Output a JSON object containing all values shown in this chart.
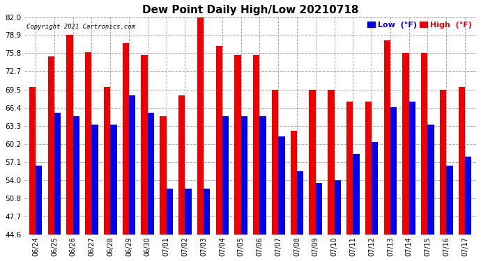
{
  "title": "Dew Point Daily High/Low 20210718",
  "copyright": "Copyright 2021 Cartronics.com",
  "legend_low": "Low  (°F)",
  "legend_high": "High  (°F)",
  "low_color": "#0000ee",
  "high_color": "#ee0000",
  "background_color": "#ffffff",
  "grid_color": "#aaaaaa",
  "ylim_low": 44.6,
  "ylim_high": 82.0,
  "yticks": [
    44.6,
    47.7,
    50.8,
    54.0,
    57.1,
    60.2,
    63.3,
    66.4,
    69.5,
    72.7,
    75.8,
    78.9,
    82.0
  ],
  "dates": [
    "06/24",
    "06/25",
    "06/26",
    "06/27",
    "06/28",
    "06/29",
    "06/30",
    "07/01",
    "07/02",
    "07/03",
    "07/04",
    "07/05",
    "07/06",
    "07/07",
    "07/08",
    "07/09",
    "07/10",
    "07/11",
    "07/12",
    "07/13",
    "07/14",
    "07/15",
    "07/16",
    "07/17"
  ],
  "high_vals": [
    70.0,
    75.2,
    79.0,
    76.0,
    70.0,
    77.5,
    75.5,
    65.0,
    68.5,
    82.0,
    77.0,
    75.5,
    75.5,
    69.5,
    62.5,
    69.5,
    69.5,
    67.5,
    67.5,
    78.0,
    75.8,
    75.8,
    69.5,
    70.0
  ],
  "low_vals": [
    56.5,
    65.5,
    65.0,
    63.5,
    63.5,
    68.5,
    65.5,
    52.5,
    52.5,
    52.5,
    65.0,
    65.0,
    65.0,
    61.5,
    55.5,
    53.5,
    54.0,
    58.5,
    60.5,
    66.5,
    67.5,
    63.5,
    56.5,
    58.0
  ]
}
